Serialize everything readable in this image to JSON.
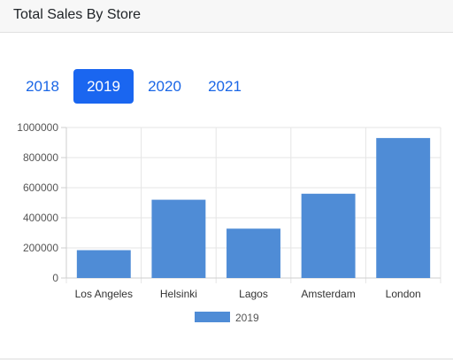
{
  "header": {
    "title": "Total Sales By Store"
  },
  "year_tabs": [
    {
      "label": "2018",
      "active": false
    },
    {
      "label": "2019",
      "active": true
    },
    {
      "label": "2020",
      "active": false
    },
    {
      "label": "2021",
      "active": false
    }
  ],
  "colors": {
    "accent": "#1a66f0",
    "bar": "#4f8cd6",
    "tab_text": "#1a66e6"
  },
  "chart_data": {
    "type": "bar",
    "categories": [
      "Los Angeles",
      "Helsinki",
      "Lagos",
      "Amsterdam",
      "London"
    ],
    "series": [
      {
        "name": "2019",
        "values": [
          185000,
          520000,
          328000,
          560000,
          930000
        ]
      }
    ],
    "yticks": [
      "0",
      "200000",
      "400000",
      "600000",
      "800000",
      "1000000"
    ],
    "ylim": [
      0,
      1000000
    ],
    "grid": true,
    "legend": "bottom"
  }
}
